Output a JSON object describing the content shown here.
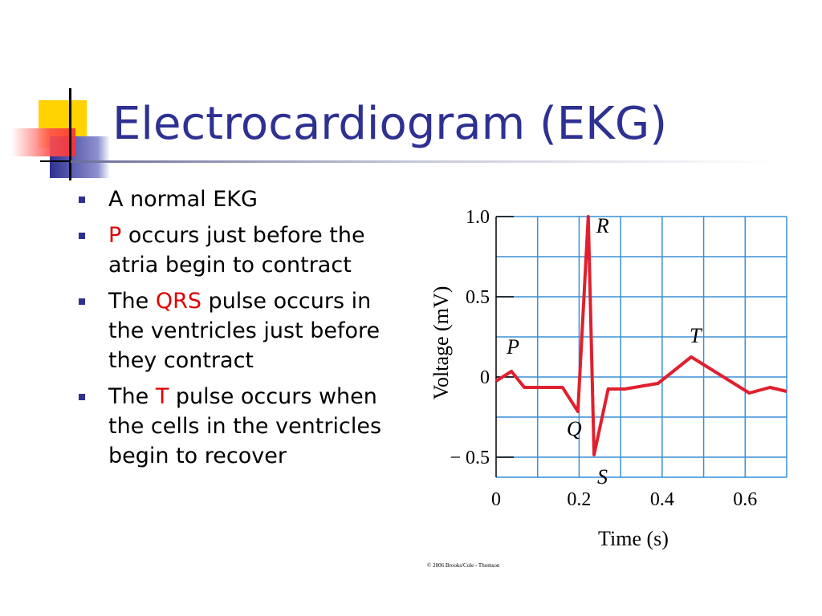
{
  "title": "Electrocardiogram (EKG)",
  "bullets": [
    {
      "segments": [
        {
          "text": "A normal EKG",
          "highlight": false
        }
      ]
    },
    {
      "segments": [
        {
          "text": "P",
          "highlight": true
        },
        {
          "text": " occurs just before the atria begin to contract",
          "highlight": false
        }
      ]
    },
    {
      "segments": [
        {
          "text": "The ",
          "highlight": false
        },
        {
          "text": "QRS",
          "highlight": true
        },
        {
          "text": " pulse occurs in the ventricles just before they contract",
          "highlight": false
        }
      ]
    },
    {
      "segments": [
        {
          "text": "The ",
          "highlight": false
        },
        {
          "text": "T",
          "highlight": true
        },
        {
          "text": " pulse occurs when the cells in the ventricles begin to recover",
          "highlight": false
        }
      ]
    }
  ],
  "chart_data": {
    "type": "line",
    "x_label": "Time (s)",
    "y_label": "Voltage (mV)",
    "credit": "© 2006 Brooks/Cole - Thomson",
    "x": [
      0,
      0.037,
      0.068,
      0.16,
      0.197,
      0.222,
      0.236,
      0.27,
      0.31,
      0.39,
      0.47,
      0.61,
      0.66,
      0.7
    ],
    "series": [
      {
        "color": "#e0202e",
        "values": [
          -0.025,
          0.035,
          -0.065,
          -0.065,
          -0.215,
          1.0,
          -0.485,
          -0.075,
          -0.075,
          -0.04,
          0.125,
          -0.1,
          -0.065,
          -0.09
        ]
      }
    ],
    "point_labels": [
      {
        "text": "P",
        "index": 1
      },
      {
        "text": "Q",
        "index": 4
      },
      {
        "text": "R",
        "index": 5
      },
      {
        "text": "S",
        "index": 6
      },
      {
        "text": "T",
        "index": 10
      }
    ],
    "xlim": [
      0,
      0.7
    ],
    "ylim": [
      -0.625,
      1.0
    ],
    "xticks": [
      0,
      0.2,
      0.4,
      0.6
    ],
    "yticks": [
      {
        "value": 1,
        "label": "1.0"
      },
      0.5,
      0,
      {
        "value": -0.5,
        "label": "− 0.5"
      }
    ],
    "xgrid": [
      0.1,
      0.2,
      0.3,
      0.4,
      0.5,
      0.6,
      0.7
    ],
    "ygrid": [
      -0.625,
      -0.5,
      -0.25,
      0,
      0.25,
      0.5,
      0.75,
      1.0
    ],
    "grid_color": "#3a8fd6",
    "highlight_color": "#e00000"
  }
}
